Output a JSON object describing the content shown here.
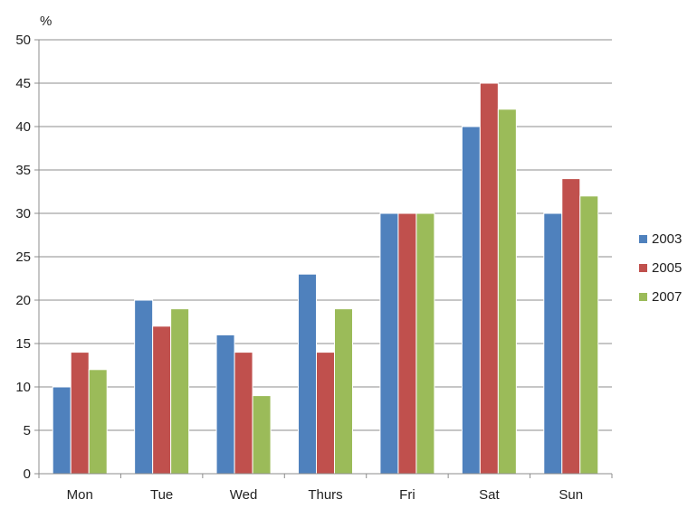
{
  "chart_data": {
    "type": "bar",
    "title": "",
    "xlabel": "",
    "ylabel": "%",
    "ylim": [
      0,
      50
    ],
    "ytick_step": 5,
    "grid": true,
    "legend_position": "right",
    "categories": [
      "Mon",
      "Tue",
      "Wed",
      "Thurs",
      "Fri",
      "Sat",
      "Sun"
    ],
    "series": [
      {
        "name": "2003",
        "color": "#4f81bd",
        "values": [
          10,
          20,
          16,
          23,
          30,
          40,
          30
        ]
      },
      {
        "name": "2005",
        "color": "#c0504d",
        "values": [
          14,
          17,
          14,
          14,
          30,
          45,
          34
        ]
      },
      {
        "name": "2007",
        "color": "#9bbb59",
        "values": [
          12,
          19,
          9,
          19,
          30,
          42,
          32
        ]
      }
    ]
  }
}
